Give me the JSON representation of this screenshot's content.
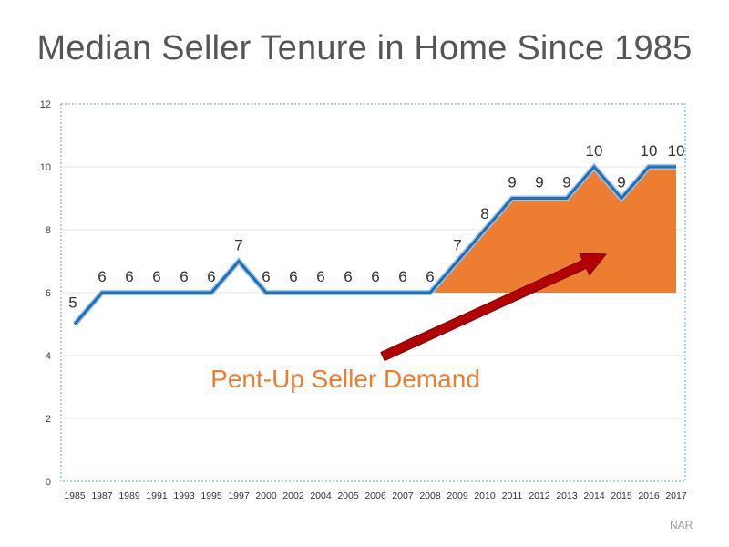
{
  "colors": {
    "line": "#1f6fb2",
    "line_shadow": "#9dc3e6",
    "fill": "#ed7d31",
    "arrow": "#b30000",
    "annotation": "#ed7d31",
    "grid": "#e6e6e6",
    "frame": "#5aa0d8"
  },
  "chart_data": {
    "type": "line",
    "title": "Median Seller Tenure in Home Since 1985",
    "categories": [
      "1985",
      "1987",
      "1989",
      "1991",
      "1993",
      "1995",
      "1997",
      "2000",
      "2002",
      "2004",
      "2005",
      "2006",
      "2007",
      "2008",
      "2009",
      "2010",
      "2011",
      "2012",
      "2013",
      "2014",
      "2015",
      "2016",
      "2017"
    ],
    "values": [
      5,
      6,
      6,
      6,
      6,
      6,
      7,
      6,
      6,
      6,
      6,
      6,
      6,
      6,
      7,
      8,
      9,
      9,
      9,
      10,
      9,
      10,
      10
    ],
    "data_labels": [
      "5",
      "6",
      "6",
      "6",
      "6",
      "6",
      "7",
      "6",
      "6",
      "6",
      "6",
      "6",
      "6",
      "6",
      "7",
      "8",
      "9",
      "9",
      "9",
      "10",
      "9",
      "10",
      "10"
    ],
    "ylim": [
      0,
      12
    ],
    "yticks": [
      "0",
      "2",
      "4",
      "6",
      "8",
      "10",
      "12"
    ],
    "grid": true,
    "shaded_region": {
      "from_category": "2008",
      "to_category": "2017",
      "baseline": 6
    },
    "annotation": {
      "text": "Pent-Up Seller Demand",
      "arrow_from": [
        "2003",
        4.0
      ],
      "arrow_to": [
        "2014",
        7.3
      ]
    },
    "source": "NAR"
  }
}
